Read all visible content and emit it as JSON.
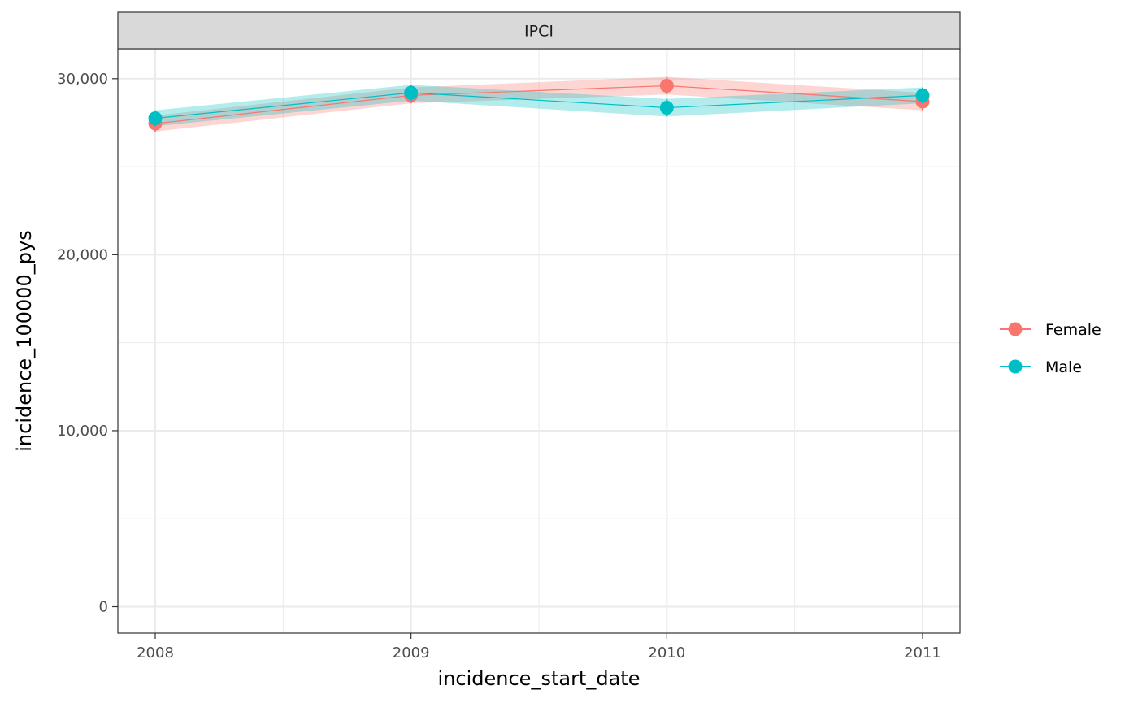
{
  "chart_data": {
    "type": "line",
    "facet_label": "IPCI",
    "xlabel": "incidence_start_date",
    "ylabel": "incidence_100000_pys",
    "x": [
      "2008",
      "2009",
      "2010",
      "2011"
    ],
    "x_tick_labels": [
      "2008",
      "2009",
      "2010",
      "2011"
    ],
    "y_tick_values": [
      0,
      10000,
      20000,
      30000
    ],
    "y_tick_labels": [
      "0",
      "10,000",
      "20,000",
      "30,000"
    ],
    "ylim": [
      -1500,
      31700
    ],
    "grid": true,
    "legend_position": "right",
    "series": [
      {
        "name": "Female",
        "color": "#F8766D",
        "values": [
          27450,
          29050,
          29600,
          28700
        ],
        "lower": [
          27000,
          28600,
          29100,
          28200
        ],
        "upper": [
          27900,
          29500,
          30100,
          29200
        ]
      },
      {
        "name": "Male",
        "color": "#00BFC4",
        "values": [
          27750,
          29200,
          28350,
          29050
        ],
        "lower": [
          27300,
          28750,
          27850,
          28600
        ],
        "upper": [
          28200,
          29650,
          28850,
          29500
        ]
      }
    ]
  }
}
